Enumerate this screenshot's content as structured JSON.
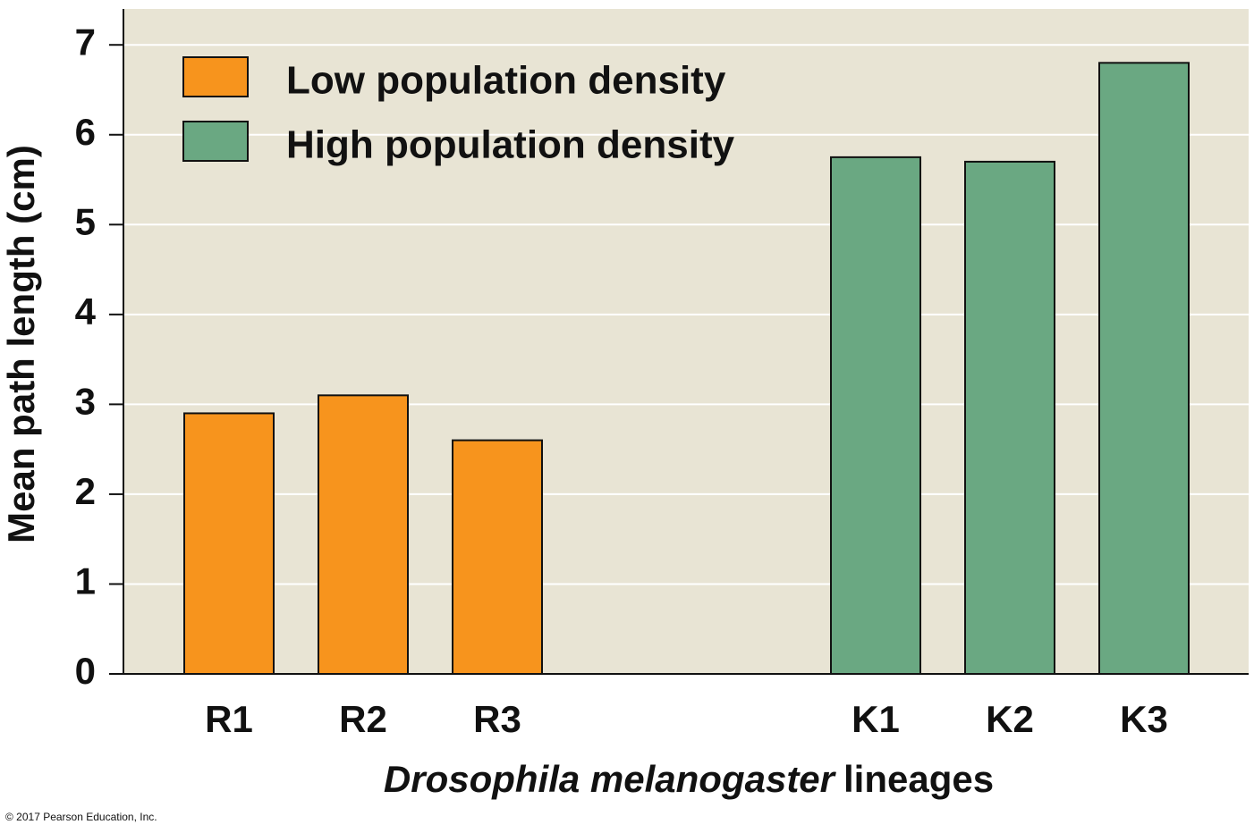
{
  "chart_data": {
    "type": "bar",
    "ylabel": "Mean path length (cm)",
    "xlabel": [
      "Drosophila melanogaster",
      "lineages"
    ],
    "categories": [
      "R1",
      "R2",
      "R3",
      "K1",
      "K2",
      "K3"
    ],
    "series": [
      {
        "name": "Low population density",
        "color": "#f7941d",
        "values": [
          2.9,
          3.1,
          2.6,
          null,
          null,
          null
        ]
      },
      {
        "name": "High population density",
        "color": "#6aa882",
        "values": [
          null,
          null,
          null,
          5.75,
          5.7,
          6.8
        ]
      }
    ],
    "ylim": [
      0,
      7.4
    ],
    "yticks": [
      0,
      1,
      2,
      3,
      4,
      5,
      6,
      7
    ],
    "grid": true,
    "legend": "upper left",
    "footnote": "© 2017 Pearson Education, Inc."
  }
}
